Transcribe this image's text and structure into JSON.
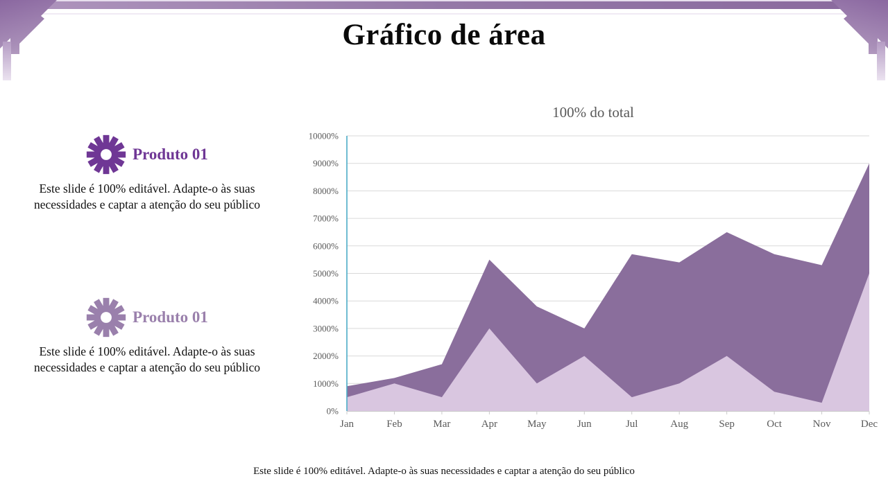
{
  "slide": {
    "title": "Gráfico de área"
  },
  "products": [
    {
      "heading": "Produto 01",
      "accent": "#6F3795",
      "description": "Este slide é 100% editável. Adapte-o às suas necessidades e captar a atenção do seu público"
    },
    {
      "heading": "Produto 01",
      "accent": "#9A80AC",
      "description": "Este slide é 100% editável. Adapte-o às suas necessidades e captar a atenção do seu público"
    }
  ],
  "footer": {
    "caption": "Este slide é 100% editável. Adapte-o às suas necessidades e captar a atenção do seu público"
  },
  "decor": {
    "banner_purple": "#9478A7",
    "corner_gradient_start": "#8A67A0",
    "corner_gradient_end": "#DDD2E4"
  },
  "chart_data": {
    "type": "area",
    "title": "100% do total",
    "categories": [
      "Jan",
      "Feb",
      "Mar",
      "Apr",
      "May",
      "Jun",
      "Jul",
      "Aug",
      "Sep",
      "Oct",
      "Nov",
      "Dec"
    ],
    "series": [
      {
        "name": "area-dark",
        "color": "#8A6E9C",
        "values": [
          900,
          1200,
          1700,
          5500,
          3800,
          3000,
          5700,
          5400,
          6500,
          5700,
          5300,
          9000
        ]
      },
      {
        "name": "area-light",
        "color": "#D9C6E0",
        "values": [
          500,
          1000,
          500,
          3000,
          1000,
          2000,
          500,
          1000,
          2000,
          700,
          300,
          5000
        ]
      }
    ],
    "xlabel": "",
    "ylabel": "",
    "ylim": [
      0,
      10000
    ],
    "ytick_step": 1000,
    "ytick_suffix": "%",
    "grid": true,
    "legend": "none",
    "overlap": true,
    "axis_color": "#4BACC6",
    "baseline_color": "#C9C9C9",
    "gridline_color": "#D9D9D9",
    "label_color": "#595959"
  }
}
